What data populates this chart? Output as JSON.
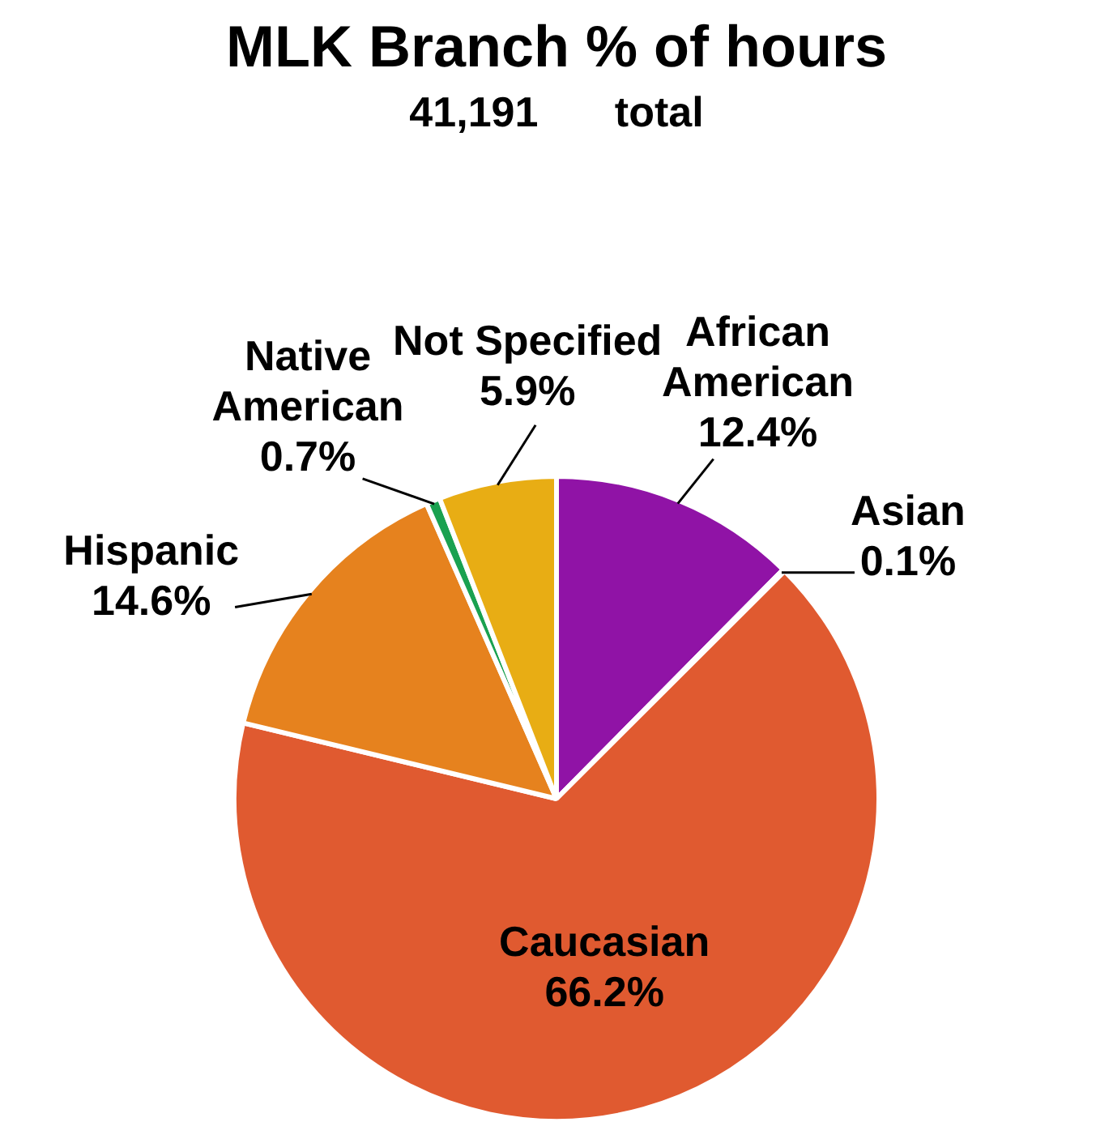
{
  "chart_data": {
    "type": "pie",
    "title": "MLK Branch % of hours",
    "subtitle": "41,191 total",
    "categories": [
      "African American",
      "Asian",
      "Caucasian",
      "Hispanic",
      "Native American",
      "Not Specified"
    ],
    "values": [
      12.4,
      0.1,
      66.2,
      14.6,
      0.7,
      5.9
    ],
    "colors": [
      "#9013a6",
      "#e8a33c",
      "#e05a30",
      "#e6821e",
      "#1aa150",
      "#e8ad14"
    ],
    "value_labels": [
      "12.4%",
      "0.1%",
      "66.2%",
      "14.6%",
      "0.7%",
      "5.9%"
    ]
  }
}
